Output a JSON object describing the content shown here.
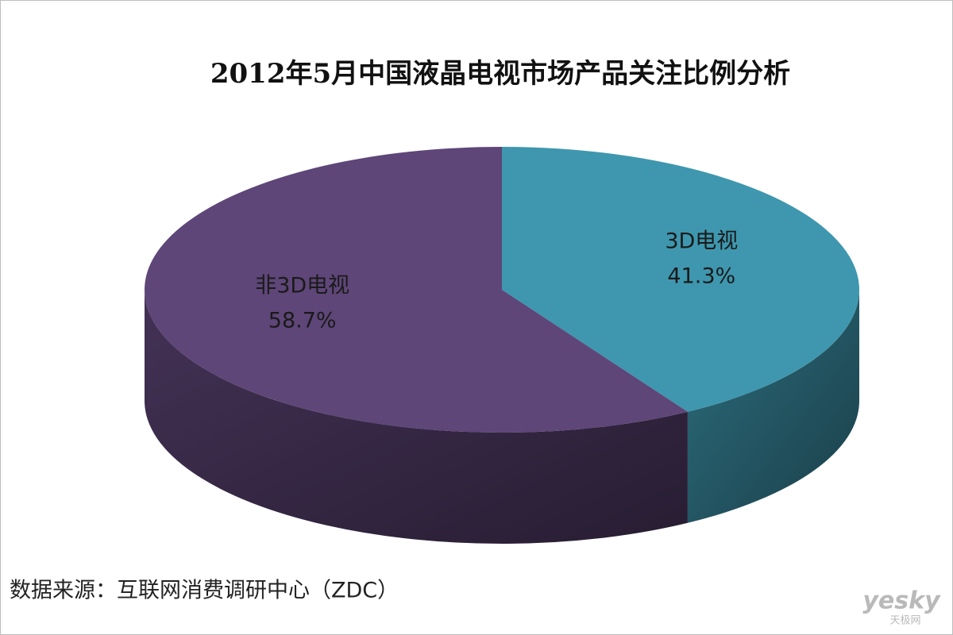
{
  "chart_data": {
    "type": "pie3d",
    "title": "2012年5月中国液晶电视市场产品关注比例分析",
    "categories": [
      "3D电视",
      "非3D电视"
    ],
    "values": [
      41.3,
      58.7
    ],
    "value_labels": [
      "41.3%",
      "58.7%"
    ],
    "colors": [
      "#3e97ae",
      "#5e4678"
    ],
    "source": "数据来源：互联网消费调研中心（ZDC）",
    "watermark": [
      "yesky",
      "天极网"
    ]
  }
}
